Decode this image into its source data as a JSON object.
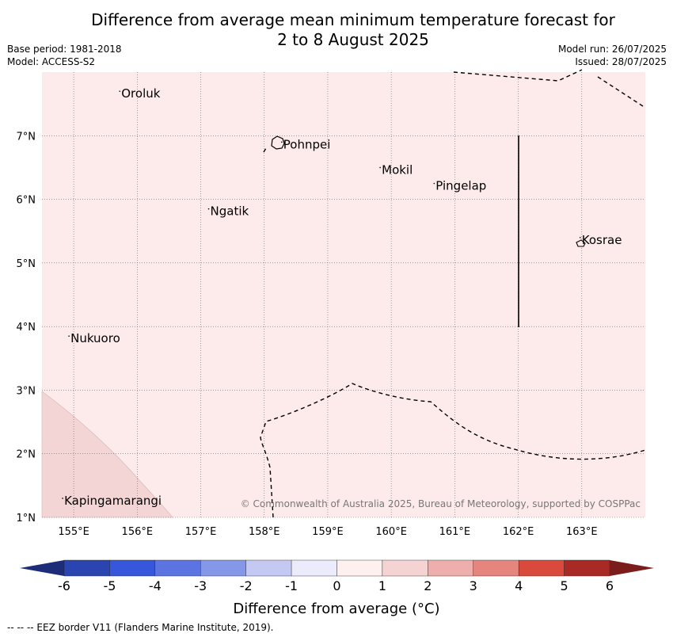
{
  "title": {
    "line1": "Difference from average mean minimum temperature forecast for",
    "line2": "2 to 8 August 2025"
  },
  "meta": {
    "base_period": "Base period: 1981-2018",
    "model": "Model: ACCESS-S2",
    "model_run": "Model run: 26/07/2025",
    "issued": "Issued: 28/07/2025"
  },
  "map": {
    "lon_range": [
      154.5,
      164.0
    ],
    "lat_range": [
      1.0,
      8.0
    ],
    "lon_ticks": [
      "155°E",
      "156°E",
      "157°E",
      "158°E",
      "159°E",
      "160°E",
      "161°E",
      "162°E",
      "163°E"
    ],
    "lat_ticks": [
      "1°N",
      "2°N",
      "3°N",
      "4°N",
      "5°N",
      "6°N",
      "7°N"
    ],
    "background_color": "#fcebea",
    "anomaly_patch_color": "#f3d5d5",
    "places": [
      {
        "name": "Oroluk",
        "lon": 155.75,
        "lat": 7.6
      },
      {
        "name": "Pohnpei",
        "lon": 158.3,
        "lat": 6.8
      },
      {
        "name": "Mokil",
        "lon": 159.85,
        "lat": 6.4
      },
      {
        "name": "Pingelap",
        "lon": 160.7,
        "lat": 6.15
      },
      {
        "name": "Ngatik",
        "lon": 157.15,
        "lat": 5.75
      },
      {
        "name": "Kosrae",
        "lon": 163.0,
        "lat": 5.3
      },
      {
        "name": "Nukuoro",
        "lon": 154.95,
        "lat": 3.75
      },
      {
        "name": "Kapingamarangi",
        "lon": 154.85,
        "lat": 1.2
      }
    ],
    "copyright": "© Commonwealth of Australia 2025, Bureau of Meteorology, supported by COSPPac"
  },
  "colorbar": {
    "label": "Difference from average (°C)",
    "ticks": [
      "-6",
      "-5",
      "-4",
      "-3",
      "-2",
      "-1",
      "0",
      "1",
      "2",
      "3",
      "4",
      "5",
      "6"
    ],
    "colors": [
      "#2a45b0",
      "#3656dc",
      "#5b74e2",
      "#8597e8",
      "#c3c9f3",
      "#ebebfb",
      "#fdf0ee",
      "#f5d3d2",
      "#eeafac",
      "#e5857e",
      "#d94a3c",
      "#a92a24"
    ],
    "under_color": "#1d2d78",
    "over_color": "#7a1d1b"
  },
  "footer": "--  --  -- EEZ border V11 (Flanders Marine Institute, 2019)."
}
